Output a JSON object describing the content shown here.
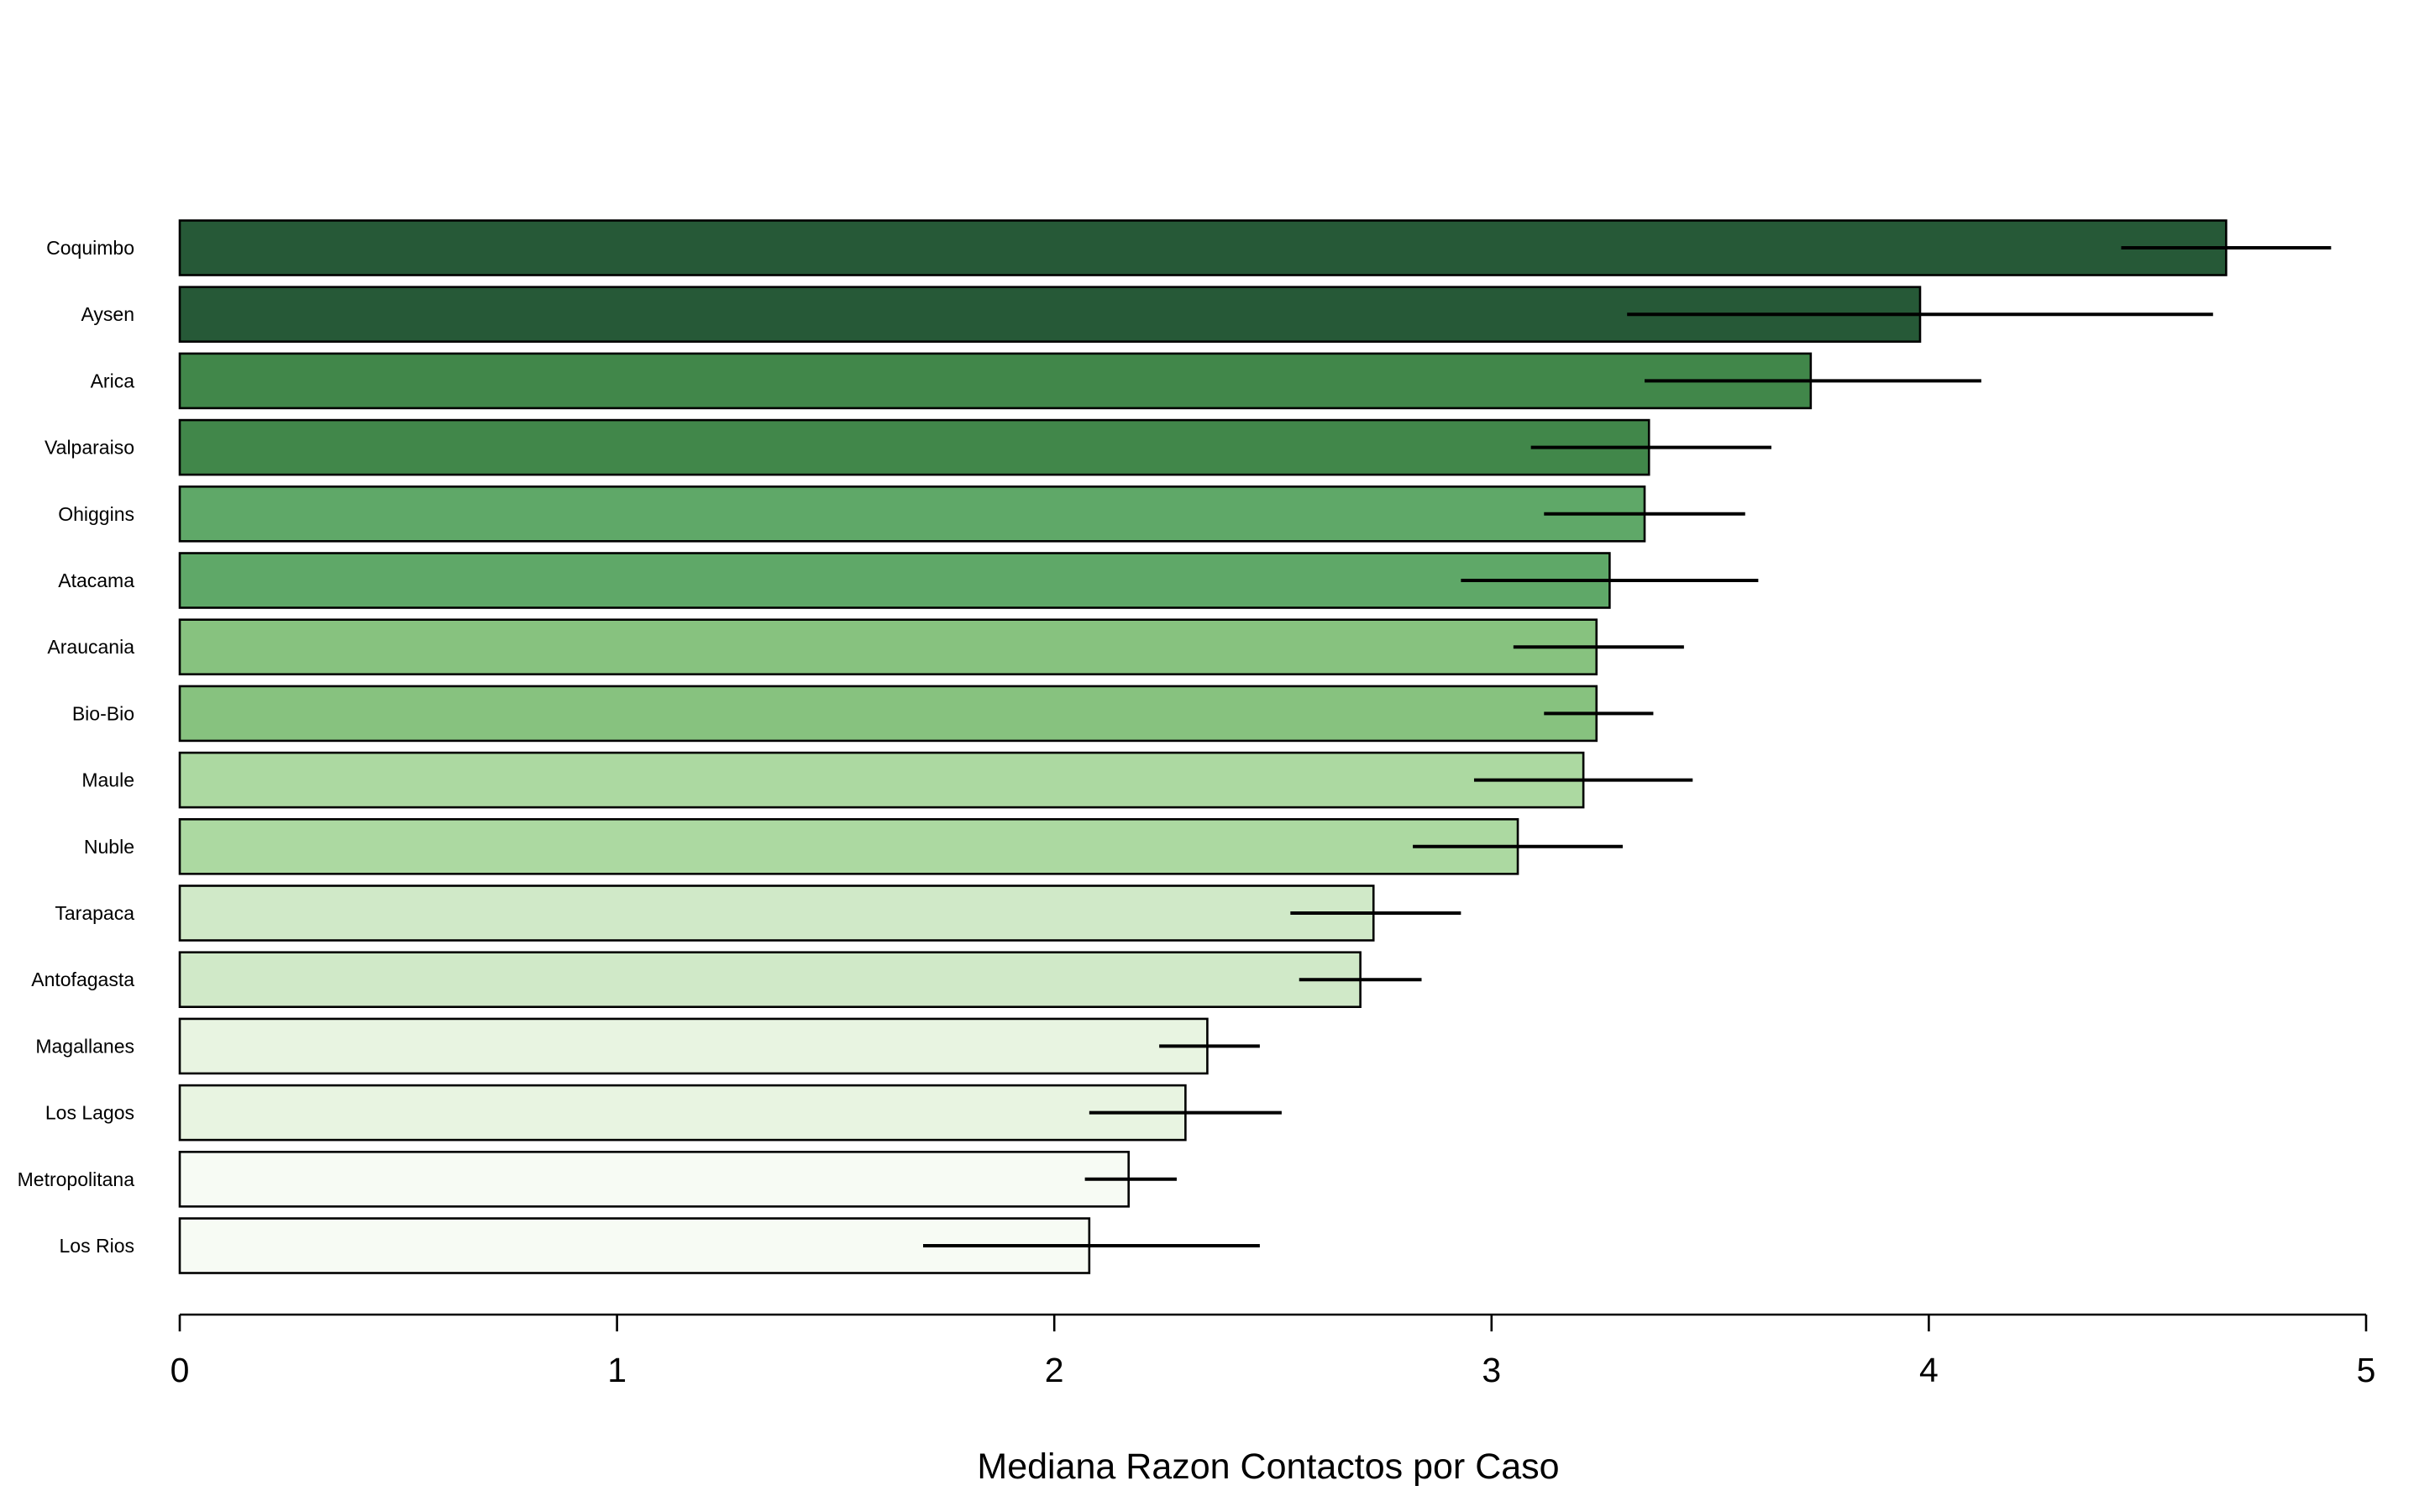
{
  "chart_data": {
    "type": "bar",
    "orientation": "horizontal",
    "title": "",
    "xlabel": "Mediana Razon Contactos por Caso",
    "ylabel": "",
    "xlim": [
      0,
      5
    ],
    "xticks": [
      "0",
      "1",
      "2",
      "3",
      "4",
      "5"
    ],
    "grid": false,
    "legend": "none",
    "series": [
      {
        "values": [
          4.68,
          3.98,
          3.73,
          3.36,
          3.35,
          3.27,
          3.24,
          3.24,
          3.21,
          3.06,
          2.73,
          2.7,
          2.35,
          2.3,
          2.17,
          2.08
        ],
        "ci_low": [
          4.44,
          3.31,
          3.35,
          3.09,
          3.12,
          2.93,
          3.05,
          3.12,
          2.96,
          2.82,
          2.54,
          2.56,
          2.24,
          2.08,
          2.07,
          1.7
        ],
        "ci_high": [
          4.92,
          4.65,
          4.12,
          3.64,
          3.58,
          3.61,
          3.44,
          3.37,
          3.46,
          3.3,
          2.93,
          2.84,
          2.47,
          2.52,
          2.28,
          2.47
        ]
      }
    ],
    "categories": [
      "Coquimbo",
      "Aysen",
      "Arica",
      "Valparaiso",
      "Ohiggins",
      "Atacama",
      "Araucania",
      "Bio-Bio",
      "Maule",
      "Nuble",
      "Tarapaca",
      "Antofagasta",
      "Magallanes",
      "Los Lagos",
      "Metropolitana",
      "Los Rios"
    ],
    "colors": [
      "#265937",
      "#265937",
      "#41874a",
      "#41874a",
      "#5fa868",
      "#5fa868",
      "#87c27f",
      "#87c27f",
      "#acd9a1",
      "#acd9a1",
      "#d0e9c8",
      "#d0e9c8",
      "#e8f4e1",
      "#e8f4e1",
      "#f7fbf4",
      "#f7fbf4"
    ]
  }
}
